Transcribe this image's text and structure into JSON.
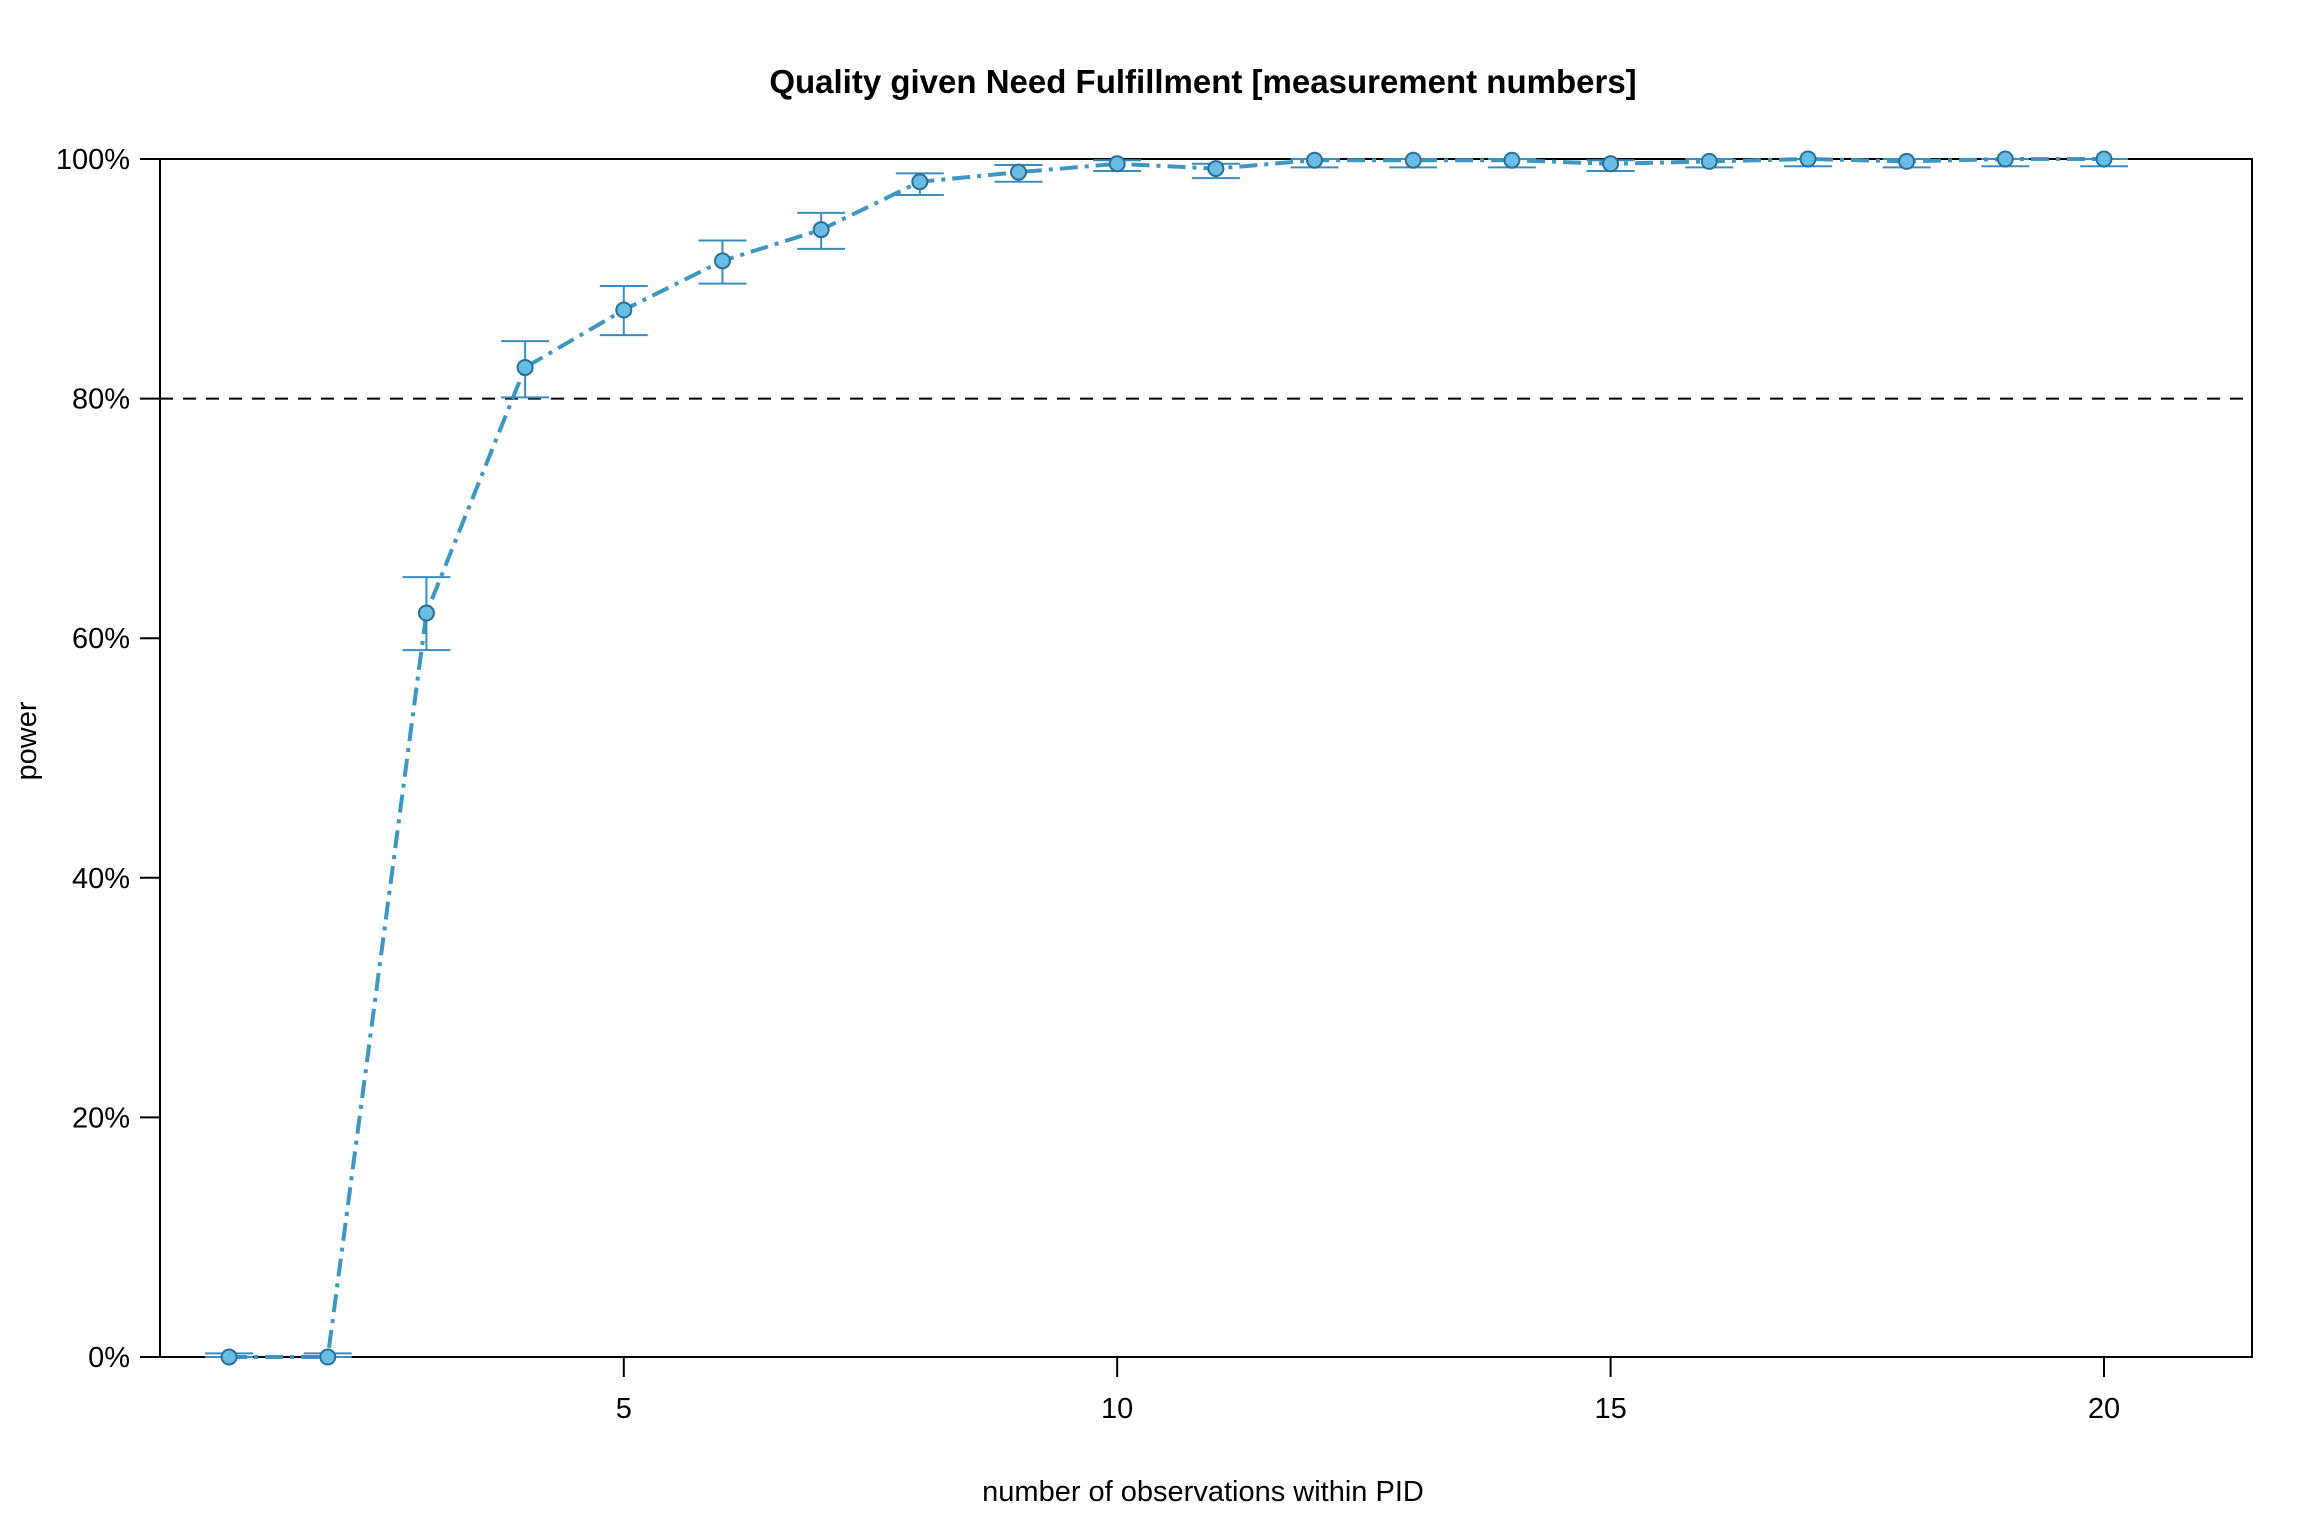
{
  "chart_data": {
    "type": "line",
    "title": "Quality given Need Fulfillment [measurement numbers]",
    "xlabel": "number of observations within PID",
    "ylabel": "power",
    "xlim": [
      0.3,
      21.5
    ],
    "ylim": [
      0,
      1
    ],
    "x_ticks": [
      5,
      10,
      15,
      20
    ],
    "y_ticks": [
      0,
      0.2,
      0.4,
      0.6,
      0.8,
      1.0
    ],
    "y_tick_labels": [
      "0%",
      "20%",
      "40%",
      "60%",
      "80%",
      "100%"
    ],
    "reference_line": {
      "y": 0.8,
      "style": "dashed"
    },
    "grid": false,
    "legend": "none",
    "series": [
      {
        "x": [
          1,
          2,
          3,
          4,
          5,
          6,
          7,
          8,
          9,
          10,
          11,
          12,
          13,
          14,
          15,
          16,
          17,
          18,
          19,
          20
        ],
        "values": [
          0.0,
          0.0,
          0.621,
          0.826,
          0.874,
          0.915,
          0.941,
          0.981,
          0.989,
          0.996,
          0.992,
          0.999,
          0.999,
          0.999,
          0.996,
          0.998,
          1.0,
          0.998,
          1.0,
          1.0
        ],
        "lower": [
          0.0,
          0.0,
          0.59,
          0.801,
          0.853,
          0.896,
          0.925,
          0.97,
          0.981,
          0.99,
          0.984,
          0.993,
          0.993,
          0.993,
          0.99,
          0.993,
          0.994,
          0.993,
          0.994,
          0.994
        ],
        "upper": [
          0.003,
          0.003,
          0.651,
          0.848,
          0.894,
          0.932,
          0.955,
          0.988,
          0.995,
          0.999,
          0.996,
          1.0,
          1.0,
          1.0,
          0.999,
          1.0,
          1.0,
          1.0,
          1.0,
          1.0
        ]
      }
    ],
    "colors": {
      "line": "#3e96c3",
      "point_fill": "#67bde3",
      "point_stroke": "#2b6f99",
      "errorbar": "#3a8dbd",
      "frame": "#000000"
    }
  }
}
